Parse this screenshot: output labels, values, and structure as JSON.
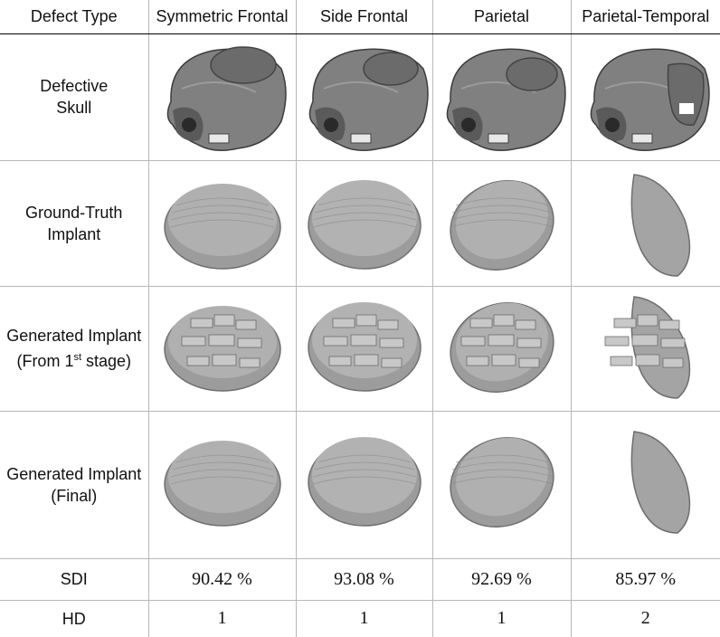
{
  "header": {
    "corner": "Defect Type",
    "columns": [
      "Symmetric Frontal",
      "Side Frontal",
      "Parietal",
      "Parietal-Temporal"
    ]
  },
  "rows": {
    "defective_skull": {
      "line1": "Defective",
      "line2": "Skull"
    },
    "ground_truth": {
      "line1": "Ground-Truth",
      "line2": "Implant"
    },
    "first_stage": {
      "line1": "Generated Implant",
      "line2_pre": "(From 1",
      "line2_sup": "st",
      "line2_post": " stage)"
    },
    "final": {
      "line1": "Generated Implant",
      "line2": "(Final)"
    }
  },
  "metrics": {
    "sdi": {
      "label": "SDI",
      "values": [
        "90.42 %",
        "93.08 %",
        "92.69 %",
        "85.97 %"
      ]
    },
    "hd": {
      "label": "HD",
      "values": [
        "1",
        "1",
        "1",
        "2"
      ]
    }
  },
  "colors": {
    "border": "#b8b8b8",
    "header_rule": "#000000",
    "implant_gray": "#9a9a9a",
    "skull_gray": "#7d7d7d"
  }
}
